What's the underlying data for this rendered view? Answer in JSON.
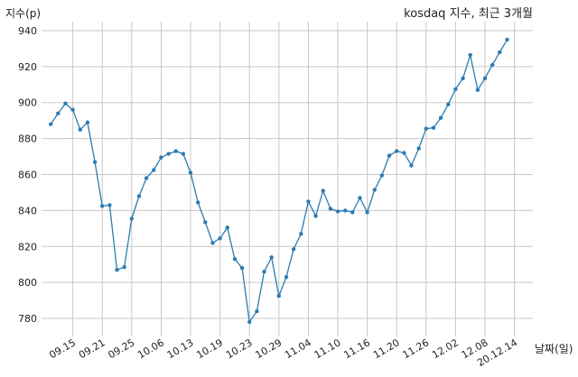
{
  "chart_data": {
    "type": "line",
    "title": "kosdaq 지수, 최근 3개월",
    "xlabel": "날짜(일)",
    "ylabel": "지수(p)",
    "ylim": [
      770,
      945
    ],
    "yticks": [
      780,
      800,
      820,
      840,
      860,
      880,
      900,
      920,
      940
    ],
    "grid": true,
    "x_tick_labels": [
      "09.15",
      "09.21",
      "09.25",
      "10.06",
      "10.13",
      "10.19",
      "10.23",
      "10.29",
      "11.04",
      "11.10",
      "11.16",
      "11.20",
      "11.26",
      "12.02",
      "12.08",
      "20.12.14"
    ],
    "x_tick_positions": [
      3,
      7,
      11,
      15,
      19,
      23,
      27,
      31,
      35,
      39,
      43,
      47,
      51,
      55,
      59,
      63
    ],
    "series": [
      {
        "values": [
          888,
          894,
          899.5,
          896,
          885,
          889,
          867,
          842.5,
          843,
          807,
          808.5,
          835.5,
          848,
          858,
          862.5,
          869.5,
          871.5,
          873,
          871.5,
          861,
          844.5,
          833.5,
          822,
          824.5,
          830.5,
          813,
          808,
          778,
          784,
          806,
          814,
          792.5,
          803,
          818.5,
          827,
          845,
          837,
          851,
          841,
          839.5,
          840,
          839,
          847,
          839,
          851.5,
          859.5,
          870.5,
          873,
          872,
          865,
          874.5,
          885.5,
          886,
          891.5,
          899,
          907.5,
          913.5,
          926.5,
          907,
          913.5,
          921,
          928,
          935
        ]
      }
    ]
  }
}
